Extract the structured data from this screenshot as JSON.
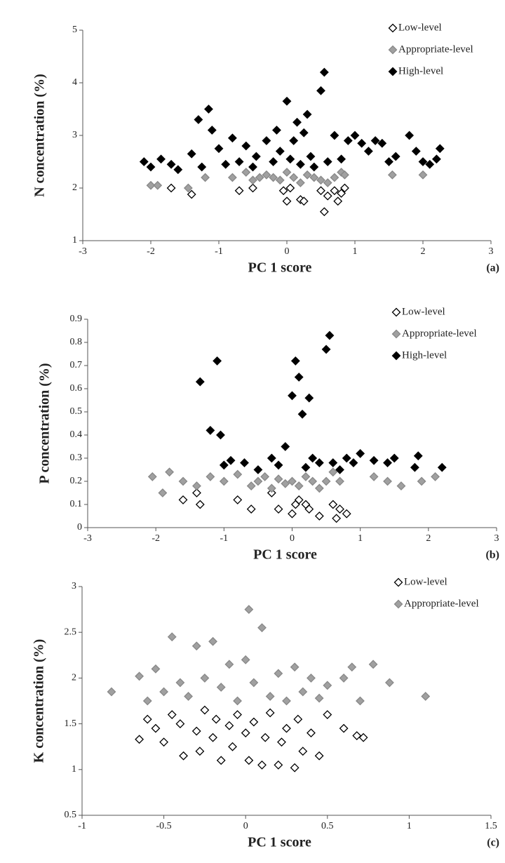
{
  "chart_data": [
    {
      "type": "scatter",
      "x_label": "PC 1 score",
      "y_label": "N concentration (%)",
      "panel_label": "(a)",
      "xlim": [
        -3,
        3
      ],
      "xticks": [
        -3,
        -2,
        -1,
        0,
        1,
        2,
        3
      ],
      "ylim": [
        1,
        5
      ],
      "yticks": [
        1,
        2,
        3,
        4,
        5
      ],
      "series": [
        {
          "name": "Low-level",
          "color": "#ffffff",
          "x": [
            -1.7,
            -1.4,
            -0.7,
            -0.5,
            -0.05,
            0,
            0.05,
            0.2,
            0.25,
            0.5,
            0.55,
            0.6,
            0.7,
            0.75,
            0.8,
            0.85
          ],
          "values": [
            2.0,
            1.88,
            1.95,
            2.0,
            1.95,
            1.75,
            2.0,
            1.78,
            1.75,
            1.95,
            1.55,
            1.85,
            1.95,
            1.75,
            1.9,
            2.0
          ]
        },
        {
          "name": "Appropriate-level",
          "color": "#a0a0a0",
          "x": [
            -2.0,
            -1.9,
            -1.45,
            -1.2,
            -0.8,
            -0.6,
            -0.5,
            -0.4,
            -0.3,
            -0.2,
            -0.1,
            0,
            0.1,
            0.2,
            0.3,
            0.4,
            0.5,
            0.6,
            0.7,
            0.8,
            0.85,
            1.55,
            2.0
          ],
          "values": [
            2.05,
            2.05,
            2.0,
            2.2,
            2.2,
            2.3,
            2.15,
            2.2,
            2.25,
            2.2,
            2.15,
            2.3,
            2.2,
            2.1,
            2.25,
            2.2,
            2.15,
            2.1,
            2.2,
            2.3,
            2.25,
            2.25,
            2.25
          ]
        },
        {
          "name": "High-level",
          "color": "#000000",
          "x": [
            -2.1,
            -2.0,
            -1.85,
            -1.7,
            -1.6,
            -1.4,
            -1.3,
            -1.25,
            -1.15,
            -1.1,
            -1.0,
            -0.9,
            -0.8,
            -0.7,
            -0.6,
            -0.5,
            -0.45,
            -0.3,
            -0.2,
            -0.15,
            -0.1,
            0,
            0.05,
            0.1,
            0.15,
            0.2,
            0.25,
            0.3,
            0.35,
            0.4,
            0.5,
            0.55,
            0.6,
            0.7,
            0.8,
            0.9,
            1.0,
            1.1,
            1.2,
            1.3,
            1.4,
            1.5,
            1.6,
            1.8,
            1.9,
            2.0,
            2.1,
            2.2,
            2.25
          ],
          "values": [
            2.5,
            2.4,
            2.55,
            2.45,
            2.35,
            2.65,
            3.3,
            2.4,
            3.5,
            3.1,
            2.75,
            2.45,
            2.95,
            2.5,
            2.8,
            2.4,
            2.6,
            2.9,
            2.5,
            3.1,
            2.7,
            3.65,
            2.55,
            2.9,
            3.25,
            2.45,
            3.05,
            3.4,
            2.6,
            2.4,
            3.85,
            4.2,
            2.5,
            3.0,
            2.55,
            2.9,
            3.0,
            2.85,
            2.7,
            2.9,
            2.85,
            2.5,
            2.6,
            3.0,
            2.7,
            2.5,
            2.45,
            2.55,
            2.75
          ]
        }
      ]
    },
    {
      "type": "scatter",
      "x_label": "PC 1 score",
      "y_label": "P concentration (%)",
      "panel_label": "(b)",
      "xlim": [
        -3,
        3
      ],
      "xticks": [
        -3,
        -2,
        -1,
        0,
        1,
        2,
        3
      ],
      "ylim": [
        0,
        0.9
      ],
      "yticks": [
        0,
        0.1,
        0.2,
        0.3,
        0.4,
        0.5,
        0.6,
        0.7,
        0.8,
        0.9
      ],
      "series": [
        {
          "name": "Low-level",
          "color": "#ffffff",
          "x": [
            -1.6,
            -1.4,
            -1.35,
            -0.8,
            -0.6,
            -0.3,
            -0.2,
            0,
            0.05,
            0.1,
            0.2,
            0.25,
            0.4,
            0.6,
            0.65,
            0.7,
            0.8
          ],
          "values": [
            0.12,
            0.15,
            0.1,
            0.12,
            0.08,
            0.15,
            0.08,
            0.06,
            0.1,
            0.12,
            0.1,
            0.08,
            0.05,
            0.1,
            0.04,
            0.08,
            0.06
          ]
        },
        {
          "name": "Appropriate-level",
          "color": "#a0a0a0",
          "x": [
            -2.05,
            -1.9,
            -1.8,
            -1.6,
            -1.4,
            -1.2,
            -1.0,
            -0.8,
            -0.6,
            -0.5,
            -0.4,
            -0.3,
            -0.2,
            -0.1,
            0,
            0.1,
            0.2,
            0.3,
            0.4,
            0.5,
            0.6,
            0.7,
            1.2,
            1.4,
            1.6,
            1.9,
            2.1
          ],
          "values": [
            0.22,
            0.15,
            0.24,
            0.2,
            0.18,
            0.22,
            0.2,
            0.23,
            0.18,
            0.2,
            0.22,
            0.17,
            0.21,
            0.19,
            0.2,
            0.18,
            0.22,
            0.2,
            0.17,
            0.2,
            0.24,
            0.2,
            0.22,
            0.2,
            0.18,
            0.2,
            0.22
          ]
        },
        {
          "name": "High-level",
          "color": "#000000",
          "x": [
            -1.35,
            -1.2,
            -1.1,
            -1.05,
            -1.0,
            -0.9,
            -0.7,
            -0.5,
            -0.3,
            -0.2,
            -0.1,
            0,
            0.05,
            0.1,
            0.15,
            0.2,
            0.25,
            0.3,
            0.4,
            0.5,
            0.55,
            0.6,
            0.7,
            0.8,
            0.9,
            1.0,
            1.2,
            1.4,
            1.5,
            1.8,
            1.85,
            2.2
          ],
          "values": [
            0.63,
            0.42,
            0.72,
            0.4,
            0.27,
            0.29,
            0.28,
            0.25,
            0.3,
            0.27,
            0.35,
            0.57,
            0.72,
            0.65,
            0.49,
            0.26,
            0.56,
            0.3,
            0.28,
            0.77,
            0.83,
            0.28,
            0.25,
            0.3,
            0.28,
            0.32,
            0.29,
            0.28,
            0.3,
            0.26,
            0.31,
            0.26
          ]
        }
      ]
    },
    {
      "type": "scatter",
      "x_label": "PC 1 score",
      "y_label": "K concentration (%)",
      "panel_label": "(c)",
      "xlim": [
        -1,
        1.5
      ],
      "xticks": [
        -1,
        -0.5,
        0,
        0.5,
        1,
        1.5
      ],
      "ylim": [
        0.5,
        3
      ],
      "yticks": [
        0.5,
        1,
        1.5,
        2,
        2.5,
        3
      ],
      "series": [
        {
          "name": "Low-level",
          "color": "#ffffff",
          "x": [
            -0.65,
            -0.6,
            -0.55,
            -0.5,
            -0.45,
            -0.4,
            -0.38,
            -0.3,
            -0.28,
            -0.25,
            -0.2,
            -0.18,
            -0.15,
            -0.1,
            -0.08,
            -0.05,
            0,
            0.02,
            0.05,
            0.1,
            0.12,
            0.15,
            0.2,
            0.22,
            0.25,
            0.3,
            0.32,
            0.35,
            0.4,
            0.45,
            0.5,
            0.6,
            0.68,
            0.72
          ],
          "values": [
            1.33,
            1.55,
            1.45,
            1.3,
            1.6,
            1.5,
            1.15,
            1.42,
            1.2,
            1.65,
            1.35,
            1.55,
            1.1,
            1.48,
            1.25,
            1.6,
            1.4,
            1.1,
            1.52,
            1.05,
            1.35,
            1.62,
            1.05,
            1.3,
            1.45,
            1.02,
            1.55,
            1.2,
            1.4,
            1.15,
            1.6,
            1.45,
            1.37,
            1.35
          ]
        },
        {
          "name": "Appropriate-level",
          "color": "#a0a0a0",
          "x": [
            -0.82,
            -0.65,
            -0.6,
            -0.55,
            -0.5,
            -0.45,
            -0.4,
            -0.35,
            -0.3,
            -0.25,
            -0.2,
            -0.15,
            -0.1,
            -0.05,
            0,
            0.02,
            0.05,
            0.1,
            0.15,
            0.2,
            0.25,
            0.3,
            0.35,
            0.4,
            0.45,
            0.5,
            0.6,
            0.65,
            0.7,
            0.78,
            0.88,
            1.1
          ],
          "values": [
            1.85,
            2.02,
            1.75,
            2.1,
            1.85,
            2.45,
            1.95,
            1.8,
            2.35,
            2.0,
            2.4,
            1.9,
            2.15,
            1.75,
            2.2,
            2.75,
            1.95,
            2.55,
            1.8,
            2.05,
            1.75,
            2.12,
            1.85,
            2.0,
            1.78,
            1.92,
            2.0,
            2.12,
            1.75,
            2.15,
            1.95,
            1.8
          ]
        }
      ]
    }
  ]
}
